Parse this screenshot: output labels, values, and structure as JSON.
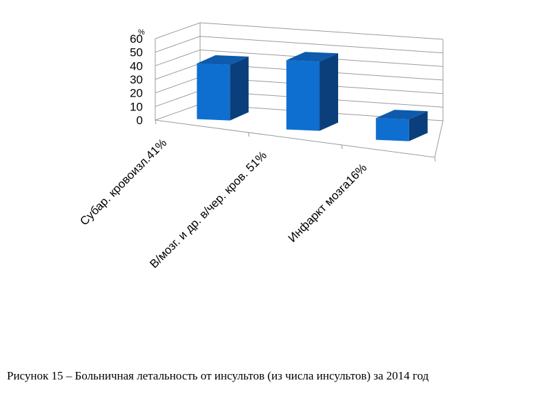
{
  "chart_data": {
    "type": "bar",
    "style": "3d-column",
    "categories": [
      "Субар. кровоизл.41%",
      "В/мозг. и др. в/чер. кров. 51%",
      "Инфаркт мозга16%"
    ],
    "values": [
      41,
      51,
      16
    ],
    "ylim": [
      0,
      60
    ],
    "yticks": [
      "0",
      "10",
      "20",
      "30",
      "40",
      "50",
      "60"
    ],
    "ylabel": "%",
    "grid": true,
    "legend": "none",
    "bar_color": "#0f6fd0",
    "bar_side_color": "#0a3f7c",
    "bar_top_color": "#0e5aad"
  },
  "caption": "Рисунок 15 – Больничная летальность от инсультов (из числа инсультов) за 2014 год"
}
